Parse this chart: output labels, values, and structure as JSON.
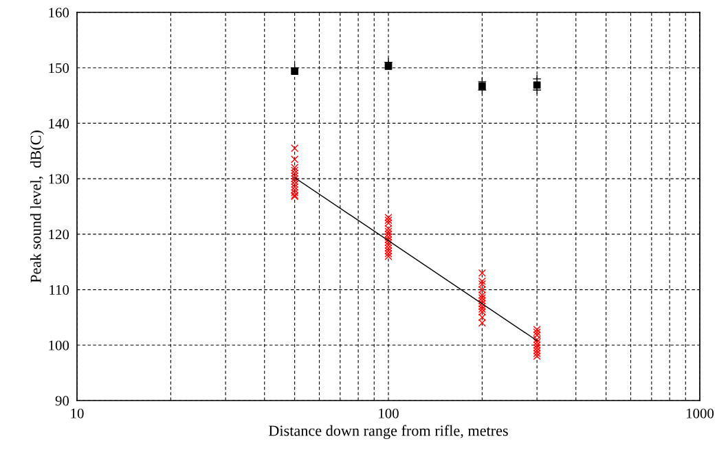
{
  "chart_data": {
    "type": "scatter",
    "xlabel": "Distance down range from rifle, metres",
    "ylabel": "Peak sound level,  dB(C)",
    "log": "x",
    "xlim": [
      10,
      1000
    ],
    "ylim": [
      90,
      160
    ],
    "xticks": [
      10,
      {
        "value": 20,
        "label": null
      },
      {
        "value": 30,
        "label": null
      },
      {
        "value": 40,
        "label": null
      },
      {
        "value": 50,
        "label": null
      },
      {
        "value": 60,
        "label": null
      },
      {
        "value": 70,
        "label": null
      },
      {
        "value": 80,
        "label": null
      },
      {
        "value": 90,
        "label": null
      },
      100,
      {
        "value": 200,
        "label": null
      },
      {
        "value": 300,
        "label": null
      },
      {
        "value": 400,
        "label": null
      },
      {
        "value": 500,
        "label": null
      },
      {
        "value": 600,
        "label": null
      },
      {
        "value": 700,
        "label": null
      },
      {
        "value": 800,
        "label": null
      },
      {
        "value": 900,
        "label": null
      },
      1000
    ],
    "yticks": [
      90,
      100,
      110,
      120,
      130,
      140,
      150,
      160
    ],
    "grid": true,
    "legend": false,
    "series": [
      {
        "marker": "plus",
        "color": "#000000",
        "x": [
          50,
          100,
          200,
          200,
          300,
          300
        ],
        "values": [
          150,
          151,
          146,
          147.5,
          146,
          148
        ]
      },
      {
        "marker": "square",
        "color": "#000000",
        "x": [
          50,
          100,
          200,
          300
        ],
        "values": [
          149.4,
          150.3,
          146.7,
          146.9
        ]
      },
      {
        "marker": "cross",
        "color": "#ff0000",
        "x": [
          50,
          50,
          50,
          50,
          50,
          50,
          50,
          50,
          50,
          50,
          50,
          50,
          50,
          50,
          100,
          100,
          100,
          100,
          100,
          100,
          100,
          100,
          100,
          100,
          100,
          100,
          100,
          100,
          200,
          200,
          200,
          200,
          200,
          200,
          200,
          200,
          200,
          200,
          200,
          200,
          200,
          300,
          300,
          300,
          300,
          300,
          300,
          300,
          300,
          300,
          300
        ],
        "values": [
          135.5,
          133.5,
          132,
          131.5,
          131,
          130.5,
          130,
          129.5,
          129,
          128.5,
          128,
          127.5,
          127,
          126.8,
          123,
          122.5,
          122,
          121,
          120.5,
          120,
          119.5,
          119,
          118.5,
          118,
          117.5,
          117,
          116.5,
          116,
          113,
          111.5,
          111,
          110,
          109,
          108.5,
          108,
          107.5,
          107,
          106.5,
          106,
          105,
          104,
          102.8,
          102.3,
          101.8,
          101,
          100.5,
          100,
          99.5,
          99,
          98.5,
          98
        ]
      },
      {
        "type": "line",
        "marker": "none",
        "line_style": "solid",
        "color": "#000000",
        "x": [
          50,
          300
        ],
        "values": [
          130.2,
          100.8
        ]
      }
    ]
  }
}
